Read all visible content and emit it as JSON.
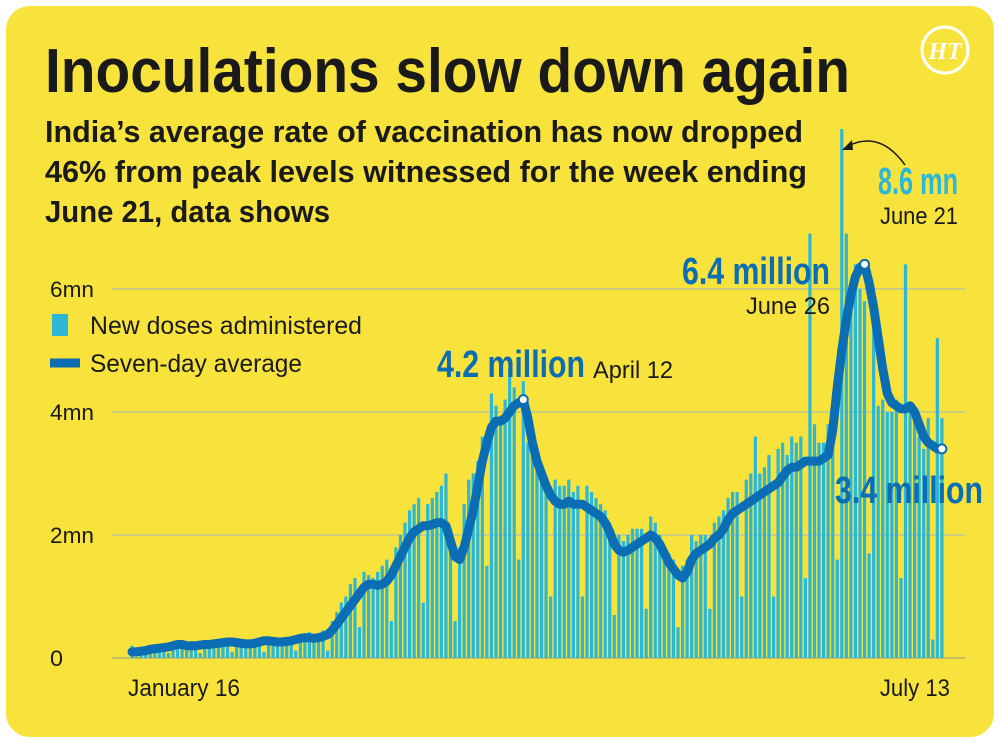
{
  "logo": "HT",
  "chart_data": {
    "type": "bar",
    "title": "Inoculations slow down again",
    "subtitle": [
      "India’s average rate of vaccination has now dropped",
      "46% from peak levels witnessed for the week ending",
      "June 21, data shows"
    ],
    "annotations": [
      "8.6 mn",
      "June 21",
      "6.4 million",
      "June 26",
      "4.2 million",
      "April 12",
      "3.4 million"
    ],
    "categories": [
      "January 16",
      null,
      null,
      null,
      null,
      null,
      null,
      null,
      null,
      null,
      null,
      null,
      null,
      null,
      null,
      null,
      null,
      null,
      null,
      null,
      null,
      null,
      null,
      null,
      null,
      null,
      null,
      null,
      null,
      null,
      null,
      null,
      null,
      null,
      null,
      null,
      null,
      null,
      null,
      null,
      null,
      null,
      null,
      null,
      null,
      null,
      null,
      null,
      null,
      null,
      null,
      null,
      null,
      null,
      null,
      null,
      null,
      null,
      null,
      null,
      null,
      null,
      null,
      null,
      null,
      null,
      null,
      null,
      null,
      null,
      null,
      null,
      null,
      null,
      null,
      null,
      null,
      null,
      null,
      null,
      null,
      null,
      null,
      null,
      null,
      null,
      null,
      null,
      null,
      null,
      null,
      null,
      null,
      null,
      null,
      null,
      null,
      null,
      null,
      null,
      null,
      null,
      null,
      null,
      null,
      null,
      null,
      null,
      null,
      null,
      null,
      null,
      null,
      null,
      null,
      null,
      null,
      null,
      null,
      null,
      null,
      null,
      null,
      null,
      null,
      null,
      null,
      null,
      null,
      null,
      null,
      null,
      null,
      null,
      null,
      null,
      null,
      null,
      null,
      null,
      null,
      null,
      null,
      null,
      null,
      null,
      null,
      null,
      null,
      null,
      null,
      null,
      null,
      null,
      null,
      null,
      null,
      null,
      null,
      null,
      null,
      null,
      null,
      null,
      null,
      null,
      null,
      null,
      null,
      null,
      null,
      null,
      null,
      null,
      null,
      null,
      null,
      null,
      "July 13"
    ],
    "series": [
      {
        "name": "New doses administered",
        "type": "bar",
        "color": "#2cb7d6",
        "values": [
          0.2,
          0.02,
          0.15,
          0.12,
          0.14,
          0.16,
          0.18,
          0.2,
          0.08,
          0.25,
          0.24,
          0.26,
          0.22,
          0.23,
          0.22,
          0.08,
          0.25,
          0.26,
          0.28,
          0.27,
          0.3,
          0.3,
          0.1,
          0.28,
          0.27,
          0.25,
          0.26,
          0.3,
          0.32,
          0.1,
          0.32,
          0.33,
          0.3,
          0.31,
          0.34,
          0.35,
          0.12,
          0.38,
          0.4,
          0.42,
          0.38,
          0.4,
          0.45,
          0.12,
          0.6,
          0.75,
          0.9,
          1.0,
          1.2,
          1.3,
          0.5,
          1.4,
          1.35,
          1.3,
          1.4,
          1.5,
          1.6,
          0.6,
          1.8,
          2.0,
          2.2,
          2.4,
          2.5,
          2.6,
          0.9,
          2.5,
          2.6,
          2.7,
          2.8,
          3.0,
          2.1,
          0.6,
          1.8,
          2.5,
          2.9,
          3.0,
          3.2,
          3.6,
          1.5,
          4.3,
          4.1,
          3.9,
          4.2,
          4.7,
          4.4,
          1.6,
          4.5,
          3.5,
          3.3,
          3.1,
          3.0,
          2.9,
          1.0,
          2.9,
          2.8,
          2.8,
          2.9,
          2.7,
          2.8,
          1.0,
          2.8,
          2.7,
          2.6,
          2.5,
          2.4,
          2.2,
          0.7,
          2.0,
          1.9,
          2.0,
          2.1,
          2.1,
          2.1,
          0.8,
          2.3,
          2.2,
          2.0,
          1.8,
          1.7,
          1.6,
          0.5,
          1.5,
          1.6,
          2.0,
          1.9,
          2.0,
          2.0,
          0.8,
          2.2,
          2.3,
          2.4,
          2.6,
          2.7,
          2.7,
          1.0,
          2.9,
          3.0,
          3.6,
          3.0,
          3.1,
          3.3,
          1.0,
          3.4,
          3.5,
          3.3,
          3.6,
          3.5,
          3.6,
          1.3,
          6.9,
          3.8,
          3.5,
          3.5,
          3.8,
          4.0,
          1.6,
          8.6,
          6.9,
          6.1,
          6.4,
          6.0,
          5.8,
          1.7,
          5.4,
          4.1,
          4.2,
          4.0,
          4.0,
          4.2,
          1.3,
          6.4,
          4.1,
          4.0,
          3.6,
          3.4,
          3.9,
          0.3,
          5.2,
          3.9
        ]
      },
      {
        "name": "Seven-day average",
        "type": "line",
        "color": "#0b6db4",
        "values": [
          0.1,
          0.1,
          0.11,
          0.12,
          0.14,
          0.15,
          0.16,
          0.17,
          0.18,
          0.2,
          0.22,
          0.22,
          0.2,
          0.2,
          0.2,
          0.21,
          0.22,
          0.22,
          0.23,
          0.24,
          0.25,
          0.26,
          0.26,
          0.25,
          0.24,
          0.23,
          0.23,
          0.24,
          0.26,
          0.28,
          0.28,
          0.27,
          0.26,
          0.26,
          0.27,
          0.28,
          0.3,
          0.32,
          0.33,
          0.33,
          0.32,
          0.33,
          0.35,
          0.38,
          0.45,
          0.55,
          0.65,
          0.75,
          0.85,
          0.95,
          1.05,
          1.15,
          1.2,
          1.2,
          1.18,
          1.2,
          1.25,
          1.35,
          1.5,
          1.65,
          1.8,
          1.95,
          2.05,
          2.1,
          2.15,
          2.15,
          2.17,
          2.2,
          2.2,
          2.15,
          1.9,
          1.65,
          1.6,
          1.8,
          2.1,
          2.4,
          2.8,
          3.2,
          3.5,
          3.75,
          3.85,
          3.85,
          3.9,
          4.0,
          4.1,
          4.15,
          4.2,
          3.9,
          3.5,
          3.2,
          3.0,
          2.8,
          2.65,
          2.55,
          2.5,
          2.5,
          2.55,
          2.5,
          2.5,
          2.5,
          2.45,
          2.4,
          2.35,
          2.3,
          2.2,
          2.05,
          1.85,
          1.75,
          1.72,
          1.75,
          1.8,
          1.85,
          1.9,
          1.95,
          2.0,
          1.95,
          1.85,
          1.7,
          1.55,
          1.45,
          1.35,
          1.3,
          1.4,
          1.6,
          1.7,
          1.75,
          1.8,
          1.85,
          1.95,
          2.0,
          2.1,
          2.25,
          2.35,
          2.4,
          2.45,
          2.5,
          2.55,
          2.6,
          2.65,
          2.7,
          2.75,
          2.8,
          2.85,
          2.95,
          3.05,
          3.1,
          3.1,
          3.15,
          3.2,
          3.2,
          3.2,
          3.2,
          3.25,
          3.3,
          3.7,
          4.4,
          5.0,
          5.5,
          5.9,
          6.2,
          6.35,
          6.4,
          6.1,
          5.7,
          5.2,
          4.7,
          4.3,
          4.15,
          4.1,
          4.05,
          4.05,
          4.1,
          4.0,
          3.8,
          3.6,
          3.5,
          3.45,
          3.4,
          3.4
        ]
      }
    ],
    "ylim": [
      0,
      8.6
    ],
    "yticks": [
      0,
      {
        "value": 2,
        "label": "2mn"
      },
      {
        "value": 4,
        "label": "4mn"
      },
      {
        "value": 6,
        "label": "6mn"
      }
    ],
    "grid": true
  }
}
